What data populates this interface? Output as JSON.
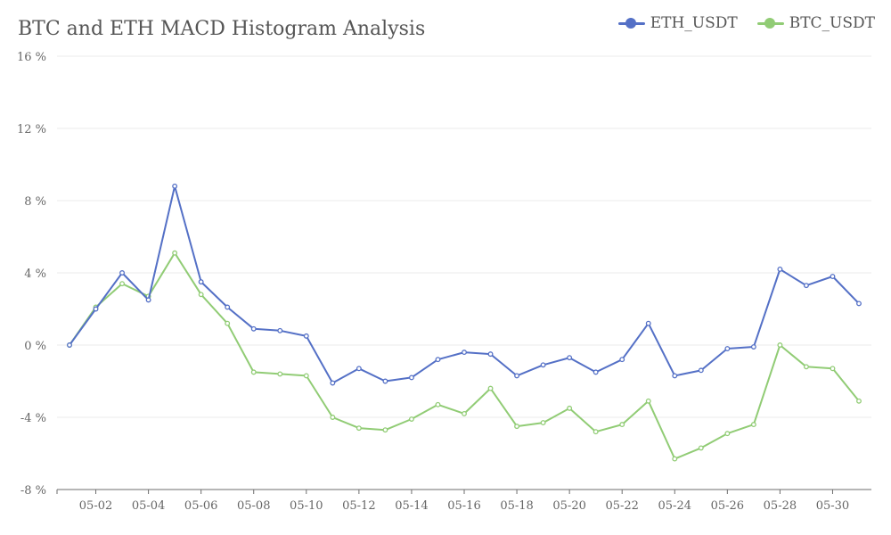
{
  "chart_data": {
    "type": "line",
    "title": "BTC and ETH MACD Histogram Analysis",
    "xlabel": "",
    "ylabel": "",
    "y_unit_suffix": " %",
    "ylim": [
      -8,
      16
    ],
    "yticks": [
      -8,
      -4,
      0,
      4,
      8,
      12,
      16
    ],
    "ytick_labels": [
      "-8 %",
      "-4 %",
      "0 %",
      "4 %",
      "8 %",
      "12 %",
      "16 %"
    ],
    "x": [
      "05-01",
      "05-02",
      "05-03",
      "05-04",
      "05-05",
      "05-06",
      "05-07",
      "05-08",
      "05-09",
      "05-10",
      "05-11",
      "05-12",
      "05-13",
      "05-14",
      "05-15",
      "05-16",
      "05-17",
      "05-18",
      "05-19",
      "05-20",
      "05-21",
      "05-22",
      "05-23",
      "05-24",
      "05-25",
      "05-26",
      "05-27",
      "05-28",
      "05-29",
      "05-30",
      "05-31"
    ],
    "xtick_labels": [
      "05-02",
      "05-04",
      "05-06",
      "05-08",
      "05-10",
      "05-12",
      "05-14",
      "05-16",
      "05-18",
      "05-20",
      "05-22",
      "05-24",
      "05-26",
      "05-28",
      "05-30"
    ],
    "grid": true,
    "legend_position": "top-right",
    "series": [
      {
        "name": "ETH_USDT",
        "color": "#5470c6",
        "values": [
          0.0,
          2.0,
          4.0,
          2.5,
          8.8,
          3.5,
          2.1,
          0.9,
          0.8,
          0.5,
          -2.1,
          -1.3,
          -2.0,
          -1.8,
          -0.8,
          -0.4,
          -0.5,
          -1.7,
          -1.1,
          -0.7,
          -1.5,
          -0.8,
          1.2,
          -1.7,
          -1.4,
          -0.2,
          -0.1,
          4.2,
          3.3,
          3.8,
          2.3
        ]
      },
      {
        "name": "BTC_USDT",
        "color": "#91cc75",
        "values": [
          0.0,
          2.1,
          3.4,
          2.7,
          5.1,
          2.8,
          1.2,
          -1.5,
          -1.6,
          -1.7,
          -4.0,
          -4.6,
          -4.7,
          -4.1,
          -3.3,
          -3.8,
          -2.4,
          -4.5,
          -4.3,
          -3.5,
          -4.8,
          -4.4,
          -3.1,
          -6.3,
          -5.7,
          -4.9,
          -4.4,
          0.0,
          -1.2,
          -1.3,
          -3.1
        ]
      }
    ]
  }
}
